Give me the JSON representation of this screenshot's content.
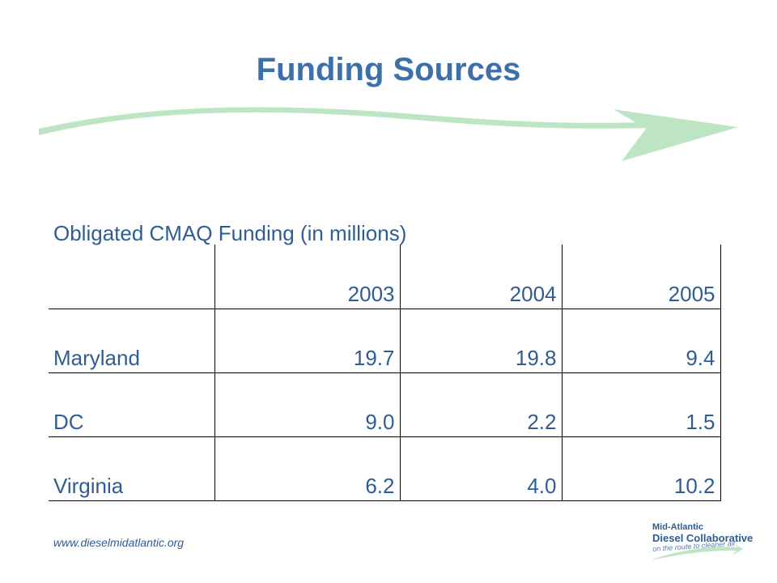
{
  "slide": {
    "title": "Funding Sources",
    "arrow_color": "#bde5c3"
  },
  "table": {
    "caption": "Obligated CMAQ Funding (in millions)",
    "header": [
      "",
      "2003",
      "2004",
      "2005"
    ],
    "rows": [
      [
        "Maryland",
        "19.7",
        "19.8",
        "9.4"
      ],
      [
        "DC",
        "9.0",
        "2.2",
        "1.5"
      ],
      [
        "Virginia",
        "6.2",
        "4.0",
        "10.2"
      ]
    ]
  },
  "footer": {
    "url": "www.dieselmidatlantic.org",
    "logo_line1": "Mid-Atlantic",
    "logo_line2": "Diesel Collaborative",
    "logo_tagline": "on the route to cleaner air"
  },
  "colors": {
    "title": "#3d6fa8",
    "text": "#2f5d91",
    "arrow": "#bde5c3"
  }
}
